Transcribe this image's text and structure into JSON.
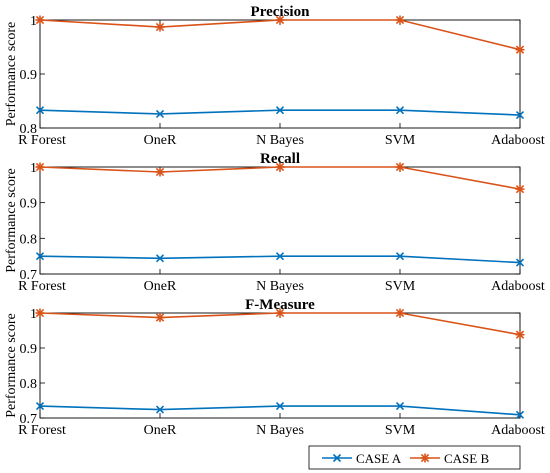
{
  "chart_data": [
    {
      "type": "line",
      "title": "Precision",
      "ylabel": "Performance score",
      "categories": [
        "R Forest",
        "OneR",
        "N Bayes",
        "SVM",
        "Adaboost"
      ],
      "ylim": [
        0.8,
        1.0
      ],
      "yticks": [
        "0.8",
        "0.9",
        "1"
      ],
      "yticks_values": [
        0.8,
        0.9,
        1.0
      ],
      "series": [
        {
          "name": "CASE A",
          "color": "#0072BD",
          "marker": "x",
          "values": [
            0.833,
            0.826,
            0.833,
            0.833,
            0.824
          ]
        },
        {
          "name": "CASE B",
          "color": "#D95319",
          "marker": "asterisk",
          "values": [
            1.0,
            0.987,
            1.0,
            1.0,
            0.945
          ]
        }
      ]
    },
    {
      "type": "line",
      "title": "Recall",
      "ylabel": "Performance score",
      "categories": [
        "R Forest",
        "OneR",
        "N Bayes",
        "SVM",
        "Adaboost"
      ],
      "ylim": [
        0.7,
        1.0
      ],
      "yticks": [
        "0.7",
        "0.8",
        "0.9",
        "1"
      ],
      "yticks_values": [
        0.7,
        0.8,
        0.9,
        1.0
      ],
      "series": [
        {
          "name": "CASE A",
          "color": "#0072BD",
          "marker": "x",
          "values": [
            0.75,
            0.744,
            0.75,
            0.75,
            0.732
          ]
        },
        {
          "name": "CASE B",
          "color": "#D95319",
          "marker": "asterisk",
          "values": [
            1.0,
            0.986,
            1.0,
            1.0,
            0.938
          ]
        }
      ]
    },
    {
      "type": "line",
      "title": "F-Measure",
      "ylabel": "Performance score",
      "categories": [
        "R Forest",
        "OneR",
        "N Bayes",
        "SVM",
        "Adaboost"
      ],
      "ylim": [
        0.7,
        1.0
      ],
      "yticks": [
        "0.7",
        "0.8",
        "0.9",
        "1"
      ],
      "yticks_values": [
        0.7,
        0.8,
        0.9,
        1.0
      ],
      "series": [
        {
          "name": "CASE A",
          "color": "#0072BD",
          "marker": "x",
          "values": [
            0.734,
            0.724,
            0.734,
            0.734,
            0.709
          ]
        },
        {
          "name": "CASE B",
          "color": "#D95319",
          "marker": "asterisk",
          "values": [
            1.0,
            0.987,
            1.0,
            1.0,
            0.938
          ]
        }
      ]
    }
  ],
  "legend": {
    "placement": "bottom-right",
    "entries": [
      {
        "name": "CASE A",
        "color": "#0072BD",
        "marker": "x"
      },
      {
        "name": "CASE B",
        "color": "#D95319",
        "marker": "asterisk"
      }
    ]
  }
}
